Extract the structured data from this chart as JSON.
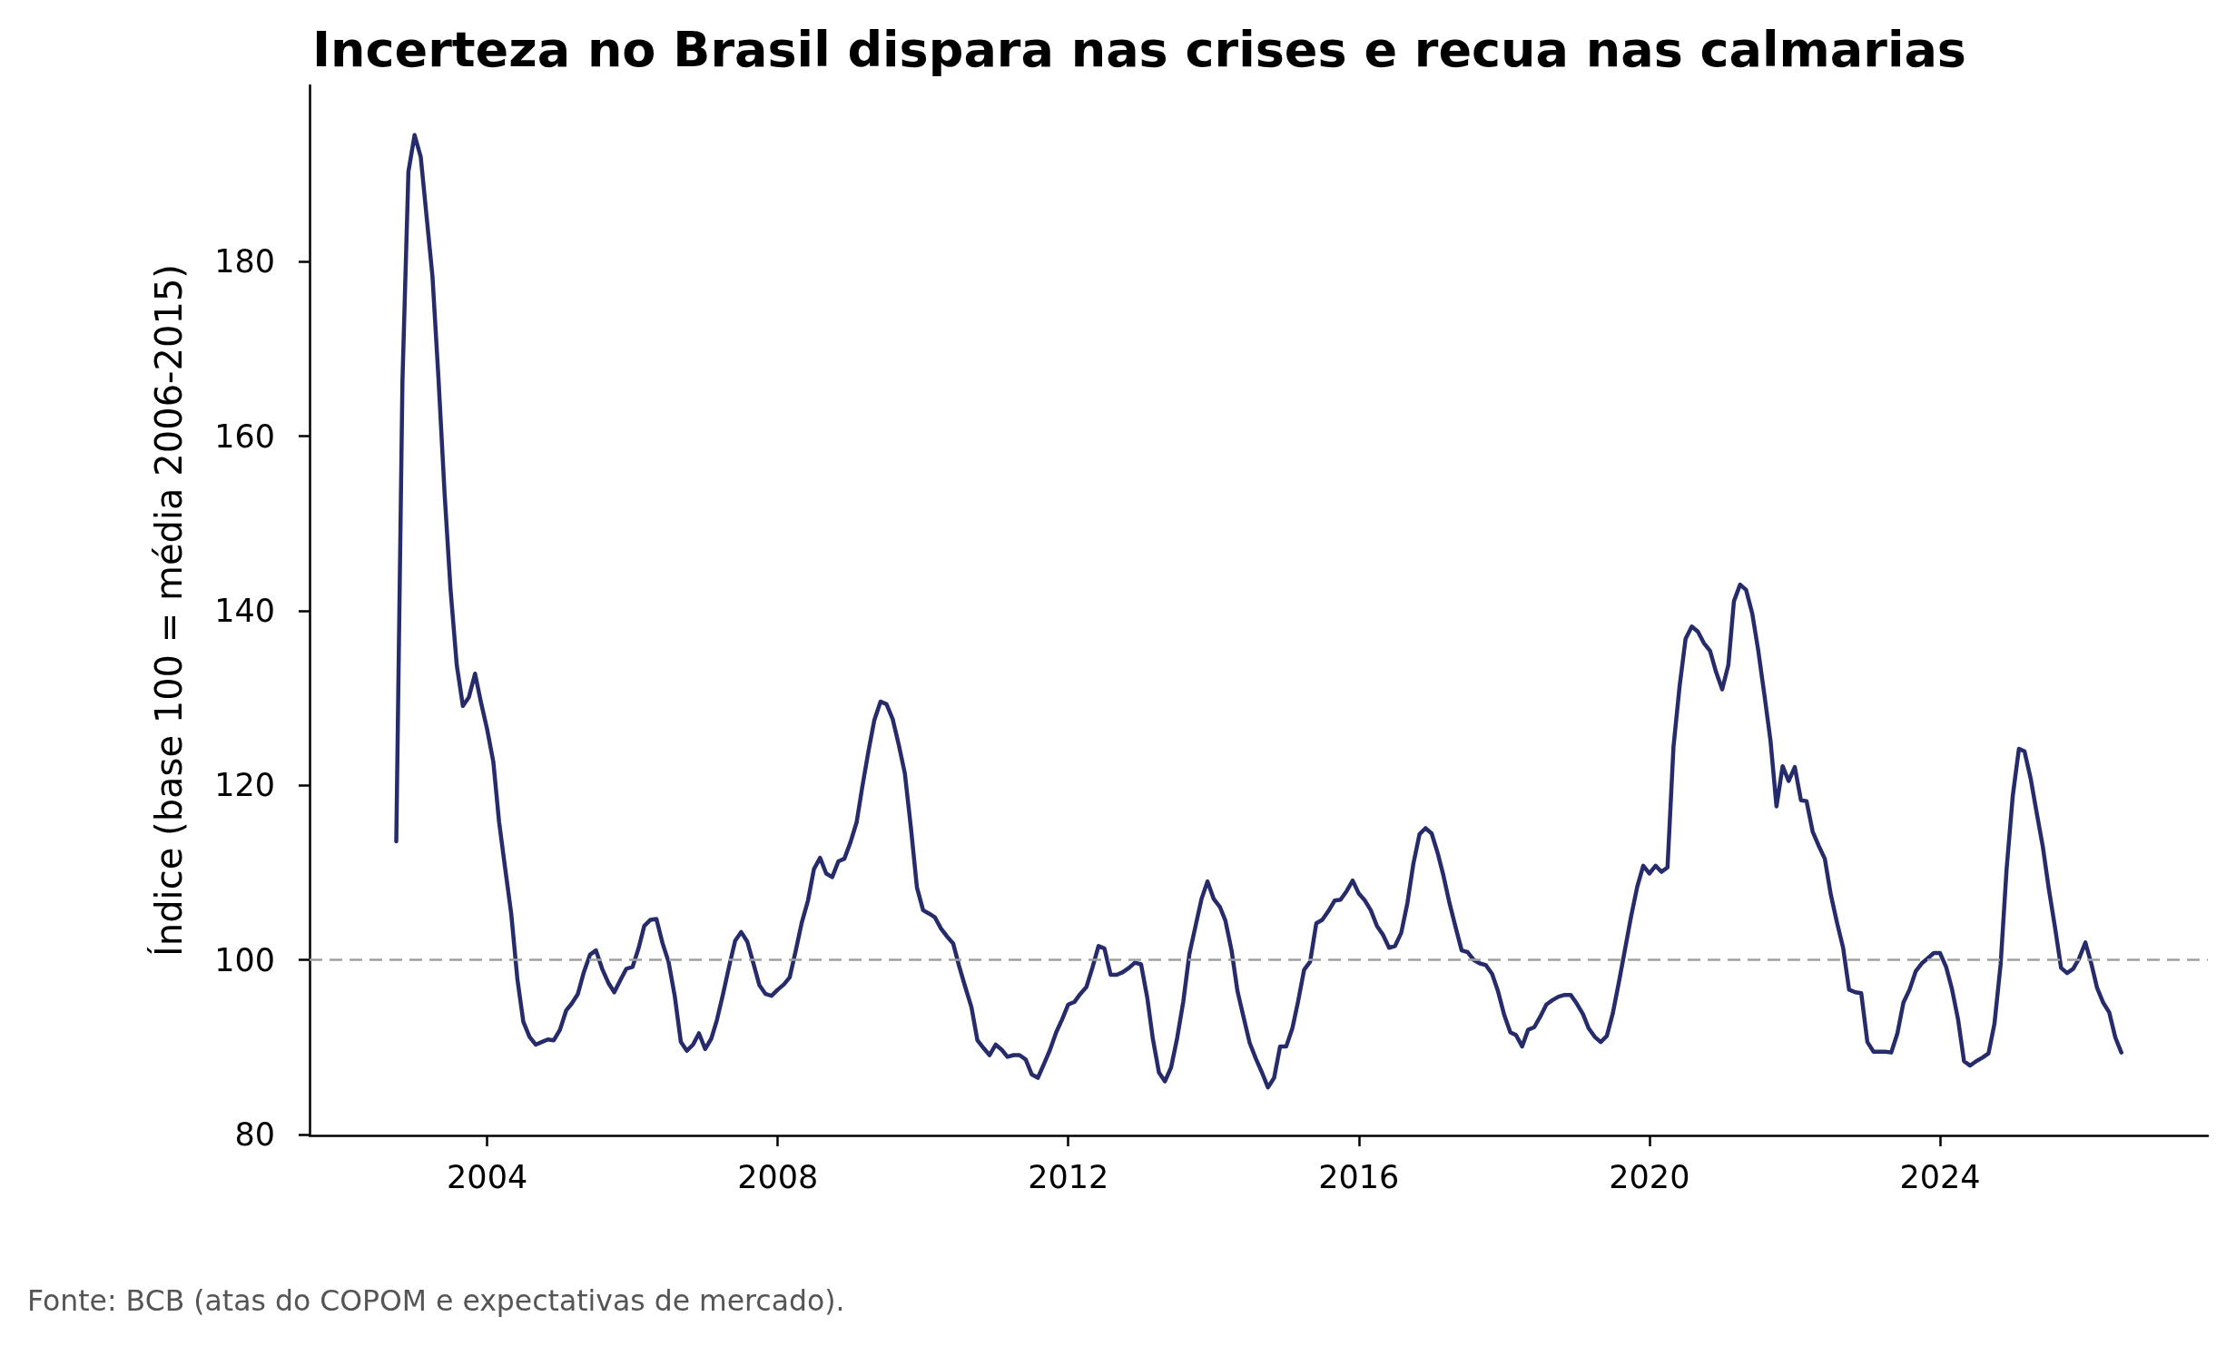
{
  "chart_data": {
    "type": "line",
    "title": "Incerteza no Brasil dispara nas crises e recua nas calmarias",
    "ylabel": "Índice (base 100 = média 2006-2015)",
    "annotations": [
      "Fonte: BCB (atas do COPOM e expectativas de mercado)."
    ],
    "color": "#262c6b",
    "x": [
      "2002-10",
      "2002-11",
      "2002-12",
      "2003-01",
      "2003-02",
      "2003-03",
      "2003-04",
      "2003-05",
      "2003-06",
      "2003-07",
      "2003-08",
      "2003-09",
      "2003-10",
      "2003-11",
      "2003-12",
      "2004-01",
      "2004-02",
      "2004-03",
      "2004-04",
      "2004-05",
      "2004-06",
      "2004-07",
      "2004-08",
      "2004-09",
      "2004-10",
      "2004-11",
      "2004-12",
      "2005-01",
      "2005-02",
      "2005-03",
      "2005-04",
      "2005-05",
      "2005-06",
      "2005-07",
      "2005-08",
      "2005-09",
      "2005-10",
      "2005-11",
      "2005-12",
      "2006-01",
      "2006-02",
      "2006-03",
      "2006-04",
      "2006-05",
      "2006-06",
      "2006-07",
      "2006-08",
      "2006-09",
      "2006-10",
      "2006-11",
      "2006-12",
      "2007-01",
      "2007-02",
      "2007-03",
      "2007-04",
      "2007-05",
      "2007-06",
      "2007-07",
      "2007-08",
      "2007-09",
      "2007-10",
      "2007-11",
      "2007-12",
      "2008-01",
      "2008-02",
      "2008-03",
      "2008-04",
      "2008-05",
      "2008-06",
      "2008-07",
      "2008-08",
      "2008-09",
      "2008-10",
      "2008-11",
      "2008-12",
      "2009-01",
      "2009-02",
      "2009-03",
      "2009-04",
      "2009-05",
      "2009-06",
      "2009-07",
      "2009-08",
      "2009-09",
      "2009-10",
      "2009-11",
      "2009-12",
      "2010-01",
      "2010-02",
      "2010-03",
      "2010-04",
      "2010-05",
      "2010-06",
      "2010-07",
      "2010-08",
      "2010-09",
      "2010-10",
      "2010-11",
      "2010-12",
      "2011-01",
      "2011-02",
      "2011-03",
      "2011-04",
      "2011-05",
      "2011-06",
      "2011-07",
      "2011-08",
      "2011-09",
      "2011-10",
      "2011-11",
      "2011-12",
      "2012-01",
      "2012-02",
      "2012-03",
      "2012-04",
      "2012-05",
      "2012-06",
      "2012-07",
      "2012-08",
      "2012-09",
      "2012-10",
      "2012-11",
      "2012-12",
      "2013-01",
      "2013-02",
      "2013-03",
      "2013-04",
      "2013-05",
      "2013-06",
      "2013-07",
      "2013-08",
      "2013-09",
      "2013-10",
      "2013-11",
      "2013-12",
      "2014-01",
      "2014-02",
      "2014-03",
      "2014-04",
      "2014-05",
      "2014-06",
      "2014-07",
      "2014-08",
      "2014-09",
      "2014-10",
      "2014-11",
      "2014-12",
      "2015-01",
      "2015-02",
      "2015-03",
      "2015-04",
      "2015-05",
      "2015-06",
      "2015-07",
      "2015-08",
      "2015-09",
      "2015-10",
      "2015-11",
      "2015-12",
      "2016-01",
      "2016-02",
      "2016-03",
      "2016-04",
      "2016-05",
      "2016-06",
      "2016-07",
      "2016-08",
      "2016-09",
      "2016-10",
      "2016-11",
      "2016-12",
      "2017-01",
      "2017-02",
      "2017-03",
      "2017-04",
      "2017-05",
      "2017-06",
      "2017-07",
      "2017-08",
      "2017-09",
      "2017-10",
      "2017-11",
      "2017-12",
      "2018-01",
      "2018-02",
      "2018-03",
      "2018-04",
      "2018-05",
      "2018-06",
      "2018-07",
      "2018-08",
      "2018-09",
      "2018-10",
      "2018-11",
      "2018-12",
      "2019-01",
      "2019-02",
      "2019-03",
      "2019-04",
      "2019-05",
      "2019-06",
      "2019-07",
      "2019-08",
      "2019-09",
      "2019-10",
      "2019-11",
      "2019-12",
      "2020-01",
      "2020-02",
      "2020-03",
      "2020-04",
      "2020-05",
      "2020-06",
      "2020-07",
      "2020-08",
      "2020-09",
      "2020-10",
      "2020-11",
      "2020-12",
      "2021-01",
      "2021-02",
      "2021-03",
      "2021-04",
      "2021-05",
      "2021-06",
      "2021-07",
      "2021-08",
      "2021-09",
      "2021-10",
      "2021-11",
      "2021-12",
      "2022-01",
      "2022-02",
      "2022-03",
      "2022-04",
      "2022-05",
      "2022-06",
      "2022-07",
      "2022-08",
      "2022-09",
      "2022-10",
      "2022-11",
      "2022-12",
      "2023-01",
      "2023-02",
      "2023-03",
      "2023-04",
      "2023-05",
      "2023-06",
      "2023-07",
      "2023-08",
      "2023-09",
      "2023-10",
      "2023-11",
      "2023-12",
      "2024-01",
      "2024-02",
      "2024-03",
      "2024-04",
      "2024-05",
      "2024-06",
      "2024-07",
      "2024-08",
      "2024-09",
      "2024-10",
      "2024-11",
      "2024-12",
      "2025-01",
      "2025-02",
      "2025-03",
      "2025-04",
      "2025-05",
      "2025-06",
      "2025-07",
      "2025-08",
      "2025-09",
      "2025-10",
      "2025-11",
      "2025-12",
      "2026-01",
      "2026-02",
      "2026-03",
      "2026-04",
      "2026-05",
      "2026-06",
      "2026-07"
    ],
    "values": [
      113.6,
      166.3,
      190.3,
      194.5,
      192.0,
      185.5,
      178.3,
      166.7,
      153.4,
      142.4,
      133.8,
      129.1,
      130.1,
      132.8,
      129.5,
      126.4,
      122.7,
      115.8,
      110.4,
      105.3,
      97.8,
      92.9,
      91.2,
      90.3,
      90.6,
      90.9,
      90.8,
      92.0,
      94.2,
      95.0,
      96.1,
      98.6,
      100.6,
      101.1,
      99.0,
      97.4,
      96.3,
      97.7,
      99.0,
      99.2,
      101.4,
      103.9,
      104.6,
      104.7,
      101.9,
      99.8,
      95.9,
      90.6,
      89.6,
      90.3,
      91.6,
      89.8,
      91.0,
      93.1,
      96.1,
      99.2,
      102.2,
      103.2,
      102.1,
      99.6,
      97.1,
      96.1,
      95.9,
      96.6,
      97.2,
      98.0,
      101.1,
      104.3,
      106.8,
      110.4,
      111.7,
      109.9,
      109.5,
      111.3,
      111.6,
      113.5,
      115.8,
      119.8,
      123.9,
      127.5,
      129.6,
      129.3,
      127.6,
      124.6,
      121.4,
      115.1,
      108.3,
      105.7,
      105.3,
      104.9,
      103.6,
      102.7,
      101.9,
      99.3,
      96.9,
      94.6,
      90.8,
      89.9,
      89.1,
      90.3,
      89.7,
      88.9,
      89.1,
      89.1,
      88.6,
      86.9,
      86.5,
      88.1,
      89.7,
      91.7,
      93.2,
      94.9,
      95.2,
      96.1,
      96.9,
      99.1,
      101.6,
      101.3,
      98.3,
      98.3,
      98.6,
      99.1,
      99.7,
      99.5,
      95.7,
      91.0,
      87.1,
      86.1,
      87.7,
      91.0,
      95.2,
      100.7,
      103.8,
      107.0,
      109.0,
      107.0,
      106.1,
      104.5,
      101.1,
      96.4,
      93.4,
      90.5,
      88.7,
      87.1,
      85.4,
      86.5,
      90.1,
      90.1,
      92.2,
      95.2,
      98.9,
      99.8,
      104.2,
      104.6,
      105.6,
      106.8,
      106.9,
      107.9,
      109.1,
      107.6,
      106.8,
      105.7,
      103.9,
      102.9,
      101.4,
      101.6,
      103.1,
      106.5,
      111.0,
      114.4,
      115.1,
      114.5,
      112.2,
      109.7,
      106.5,
      103.8,
      101.1,
      100.9,
      100.0,
      99.6,
      99.4,
      98.4,
      96.4,
      93.7,
      91.7,
      91.4,
      90.1,
      92.0,
      92.3,
      93.5,
      94.9,
      95.4,
      95.8,
      96.0,
      96.0,
      95.0,
      93.8,
      92.2,
      91.2,
      90.6,
      91.3,
      93.9,
      97.5,
      101.3,
      105.0,
      108.4,
      110.8,
      109.9,
      110.8,
      110.1,
      110.6,
      124.4,
      131.4,
      136.8,
      138.2,
      137.6,
      136.3,
      135.4,
      133.0,
      131.0,
      133.8,
      141.1,
      143.0,
      142.4,
      139.7,
      135.5,
      130.4,
      125.1,
      117.6,
      122.2,
      120.5,
      122.1,
      118.3,
      118.2,
      114.7,
      113.1,
      111.6,
      107.5,
      104.3,
      101.4,
      96.6,
      96.3,
      96.2,
      90.6,
      89.5,
      89.5,
      89.5,
      89.4,
      91.6,
      95.1,
      96.6,
      98.7,
      99.6,
      100.2,
      100.8,
      100.8,
      99.2,
      96.7,
      93.2,
      88.4,
      87.9,
      88.4,
      88.8,
      89.3,
      92.7,
      99.5,
      110.4,
      118.8,
      124.2,
      123.9,
      120.8,
      116.9,
      113.0,
      108.2,
      103.8,
      99.1,
      98.5,
      99.0,
      100.2,
      102.0,
      99.5,
      96.8,
      95.1,
      94.0,
      91.1,
      89.4
    ],
    "xlim": [
      "2001-07-22",
      "2027-09-09"
    ],
    "xticks": [
      "2004",
      "2008",
      "2012",
      "2016",
      "2020",
      "2024"
    ],
    "ylim": [
      79.9,
      200.2
    ],
    "yticks": [
      80,
      100,
      120,
      140,
      160,
      180
    ],
    "ref_lines": [
      {
        "axis": "y",
        "value": 100,
        "color": "#a0a0a0",
        "line_style": "dashed"
      }
    ]
  }
}
